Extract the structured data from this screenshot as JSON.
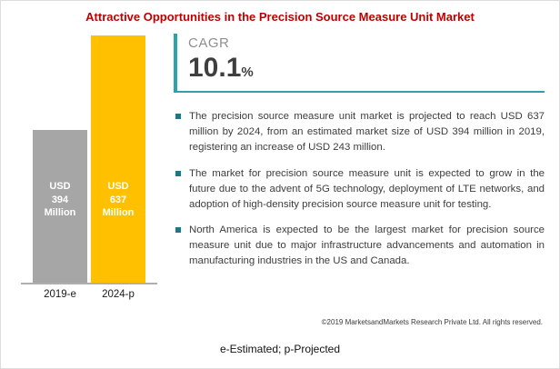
{
  "title": "Attractive Opportunities in the Precision Source Measure Unit Market",
  "chart_data": {
    "type": "bar",
    "categories": [
      "2019-e",
      "2024-p"
    ],
    "values": [
      394,
      637
    ],
    "unit": "USD Million",
    "bar_labels": [
      "USD 394 Million",
      "USD 637 Million"
    ],
    "colors": [
      "#A6A6A6",
      "#FFC000"
    ],
    "ylim": [
      0,
      637
    ],
    "grid": false,
    "legend": "none"
  },
  "cagr": {
    "label": "CAGR",
    "value": "10.1",
    "unit": "%"
  },
  "bullets": [
    "The precision source measure unit market is projected to reach USD 637 million by 2024, from an estimated market size of USD 394 million in 2019, registering an increase of USD 243 million.",
    "The market for precision source measure unit is expected to grow in the future due to the advent of 5G technology, deployment of LTE networks, and adoption of high-density precision source measure unit for testing.",
    "North America is expected to be the largest market for precision source measure unit due to major infrastructure advancements and automation in manufacturing industries in the US and Canada."
  ],
  "footer": {
    "copyright": "©2019 MarketsandMarkets Research Private Ltd. All rights reserved.",
    "note": "e-Estimated; p-Projected"
  },
  "colors": {
    "title": "#C00000",
    "accent": "#2BA3A9",
    "bullet": "#17798A",
    "bar_gray": "#A6A6A6",
    "bar_yellow": "#FFC000"
  }
}
